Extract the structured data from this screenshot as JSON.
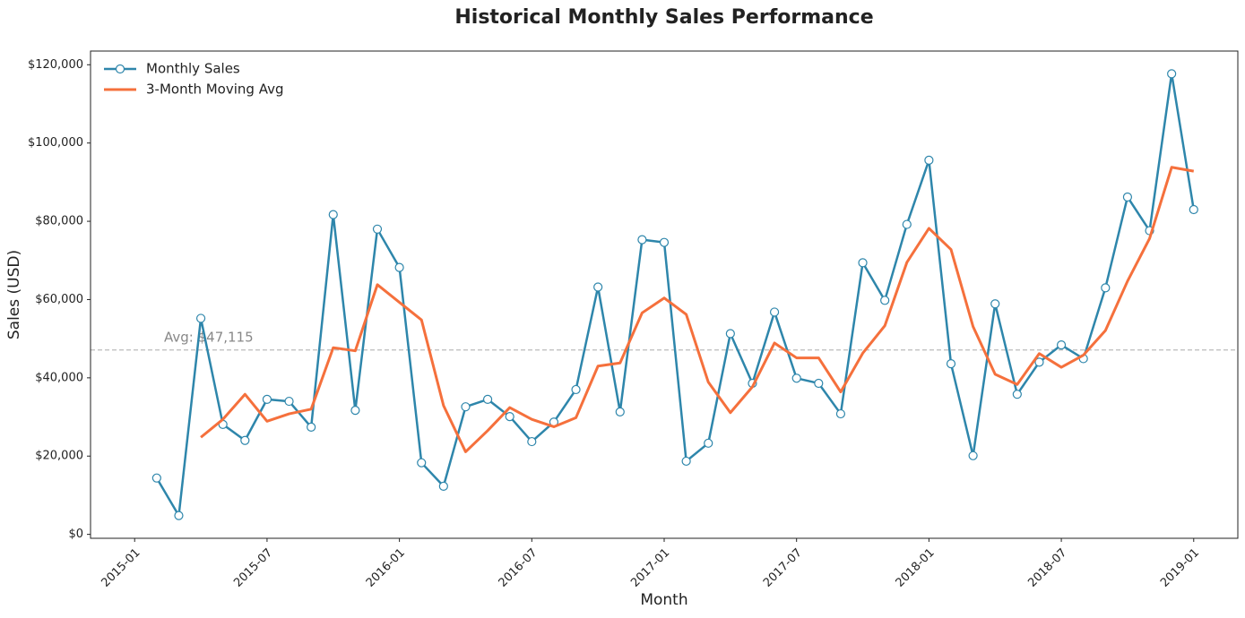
{
  "chart_data": {
    "type": "line",
    "title": "Historical Monthly Sales Performance",
    "xlabel": "Month",
    "ylabel": "Sales (USD)",
    "x": [
      "2015-01",
      "2015-02",
      "2015-03",
      "2015-04",
      "2015-05",
      "2015-06",
      "2015-07",
      "2015-08",
      "2015-09",
      "2015-10",
      "2015-11",
      "2015-12",
      "2016-01",
      "2016-02",
      "2016-03",
      "2016-04",
      "2016-05",
      "2016-06",
      "2016-07",
      "2016-08",
      "2016-09",
      "2016-10",
      "2016-11",
      "2016-12",
      "2017-01",
      "2017-02",
      "2017-03",
      "2017-04",
      "2017-05",
      "2017-06",
      "2017-07",
      "2017-08",
      "2017-09",
      "2017-10",
      "2017-11",
      "2017-12",
      "2018-01",
      "2018-02",
      "2018-03",
      "2018-04",
      "2018-05",
      "2018-06",
      "2018-07",
      "2018-08",
      "2018-09",
      "2018-10",
      "2018-11",
      "2018-12"
    ],
    "series": [
      {
        "name": "Monthly Sales",
        "color": "#2e86ab",
        "marker": true,
        "values": [
          14400,
          4800,
          55200,
          28100,
          24000,
          34500,
          34000,
          27400,
          81700,
          31700,
          78000,
          68200,
          18300,
          12300,
          32600,
          34500,
          30100,
          23700,
          28700,
          37000,
          63200,
          31300,
          75300,
          74600,
          18700,
          23300,
          51300,
          38600,
          56800,
          39900,
          38600,
          30800,
          69400,
          59800,
          79200,
          95600,
          43600,
          20100,
          58900,
          35800,
          44000,
          48400,
          44900,
          63000,
          86200,
          77600,
          117700,
          83000
        ]
      },
      {
        "name": "3-Month Moving Avg",
        "color": "#f5703c",
        "marker": false,
        "values": [
          null,
          null,
          24800,
          29400,
          35800,
          28900,
          30800,
          32000,
          47700,
          46900,
          63800,
          59300,
          54800,
          32900,
          21100,
          26500,
          32400,
          29400,
          27500,
          29800,
          43000,
          43800,
          56600,
          60400,
          56200,
          38900,
          31100,
          37700,
          48900,
          45100,
          45100,
          36400,
          46300,
          53300,
          69500,
          78200,
          72800,
          53100,
          40900,
          38300,
          46200,
          42700,
          45800,
          52100,
          64700,
          75600,
          93800,
          92800
        ]
      }
    ],
    "average": 47115,
    "average_label": "Avg: $47,115",
    "xlim": [
      "2014-11",
      "2019-03"
    ],
    "xticks": [
      "2015-01",
      "2015-07",
      "2016-01",
      "2016-07",
      "2017-01",
      "2017-07",
      "2018-01",
      "2018-07",
      "2019-01"
    ],
    "ylim": [
      -1000,
      123500
    ],
    "yticks": [
      {
        "value": 0,
        "label": "$0"
      },
      {
        "value": 20000,
        "label": "$20,000"
      },
      {
        "value": 40000,
        "label": "$40,000"
      },
      {
        "value": 60000,
        "label": "$60,000"
      },
      {
        "value": 80000,
        "label": "$80,000"
      },
      {
        "value": 100000,
        "label": "$100,000"
      },
      {
        "value": 120000,
        "label": "$120,000"
      }
    ],
    "grid": false,
    "legend": "upper left"
  }
}
